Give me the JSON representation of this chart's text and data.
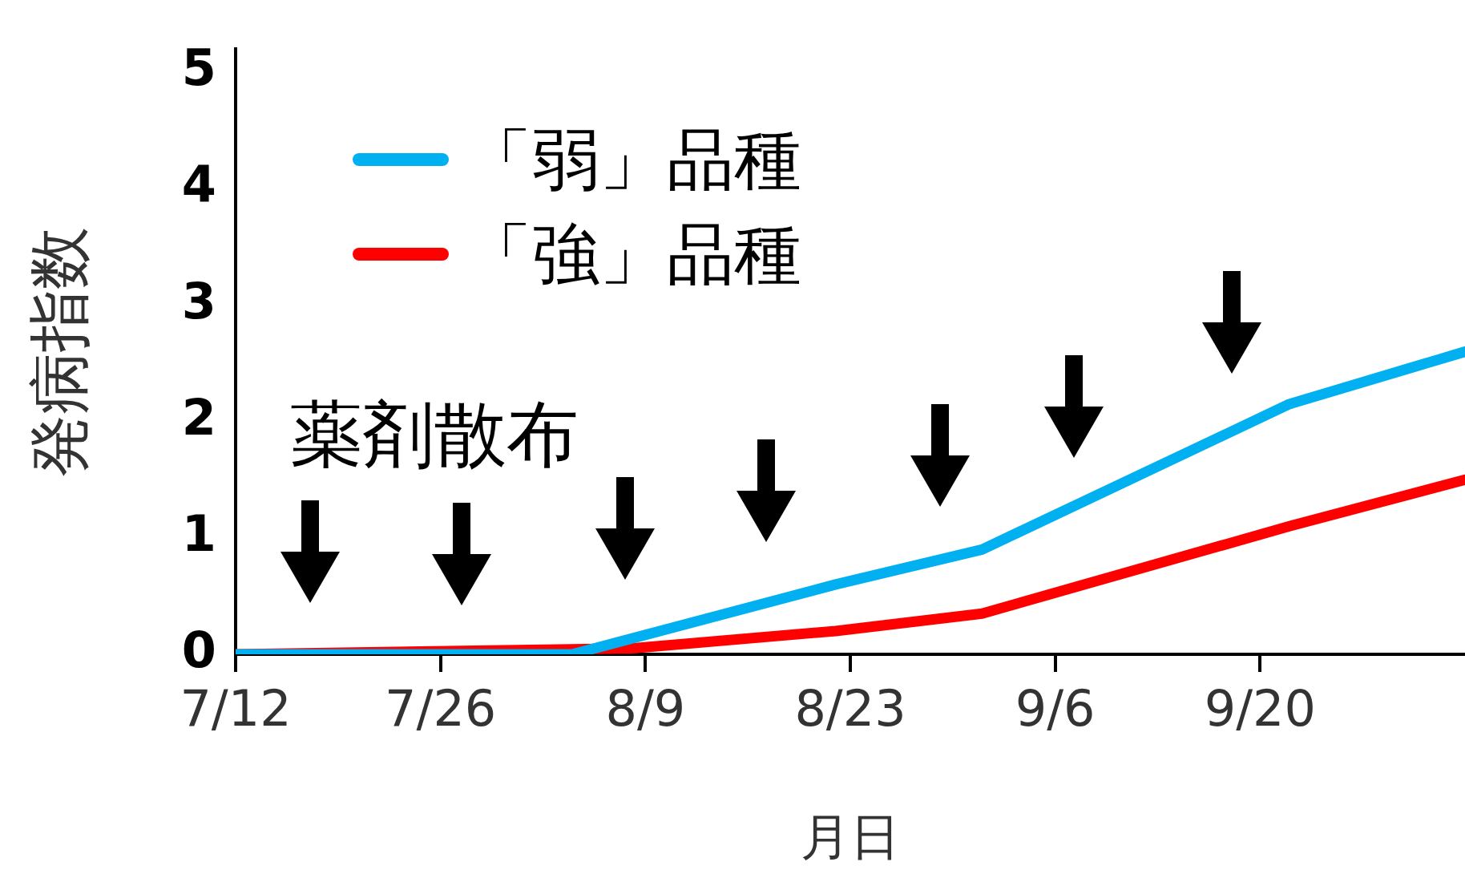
{
  "chart_data": {
    "type": "line",
    "xlabel": "月日",
    "ylabel": "発病指数",
    "legend": "top left",
    "xlim": [
      "--07-12",
      "--10-04"
    ],
    "xticks": [
      {
        "value": "--07-12",
        "label": "7/12"
      },
      {
        "value": "--07-26",
        "label": "7/26"
      },
      {
        "value": "--08-09",
        "label": "8/9"
      },
      {
        "value": "--08-23",
        "label": "8/23"
      },
      {
        "value": "--09-06",
        "label": "9/6"
      },
      {
        "value": "--09-20",
        "label": "9/20"
      }
    ],
    "ylim": [
      0,
      5.2
    ],
    "yticks": [
      0,
      1,
      2,
      3,
      4,
      5
    ],
    "annotations": [
      "薬剤散布"
    ],
    "series": [
      {
        "name": "「弱」品種",
        "color": "#00b0f0",
        "x": [
          "--07-12",
          "--08-04",
          "--08-22",
          "--09-01",
          "--09-22",
          "--10-04"
        ],
        "values": [
          0,
          0,
          0.6,
          0.9,
          2.15,
          2.6
        ]
      },
      {
        "name": "「強」品種",
        "color": "#ff0000",
        "x": [
          "--07-12",
          "--08-08",
          "--08-22",
          "--09-01",
          "--09-22",
          "--10-04"
        ],
        "values": [
          0,
          0.05,
          0.2,
          0.35,
          1.1,
          1.5
        ]
      }
    ]
  }
}
